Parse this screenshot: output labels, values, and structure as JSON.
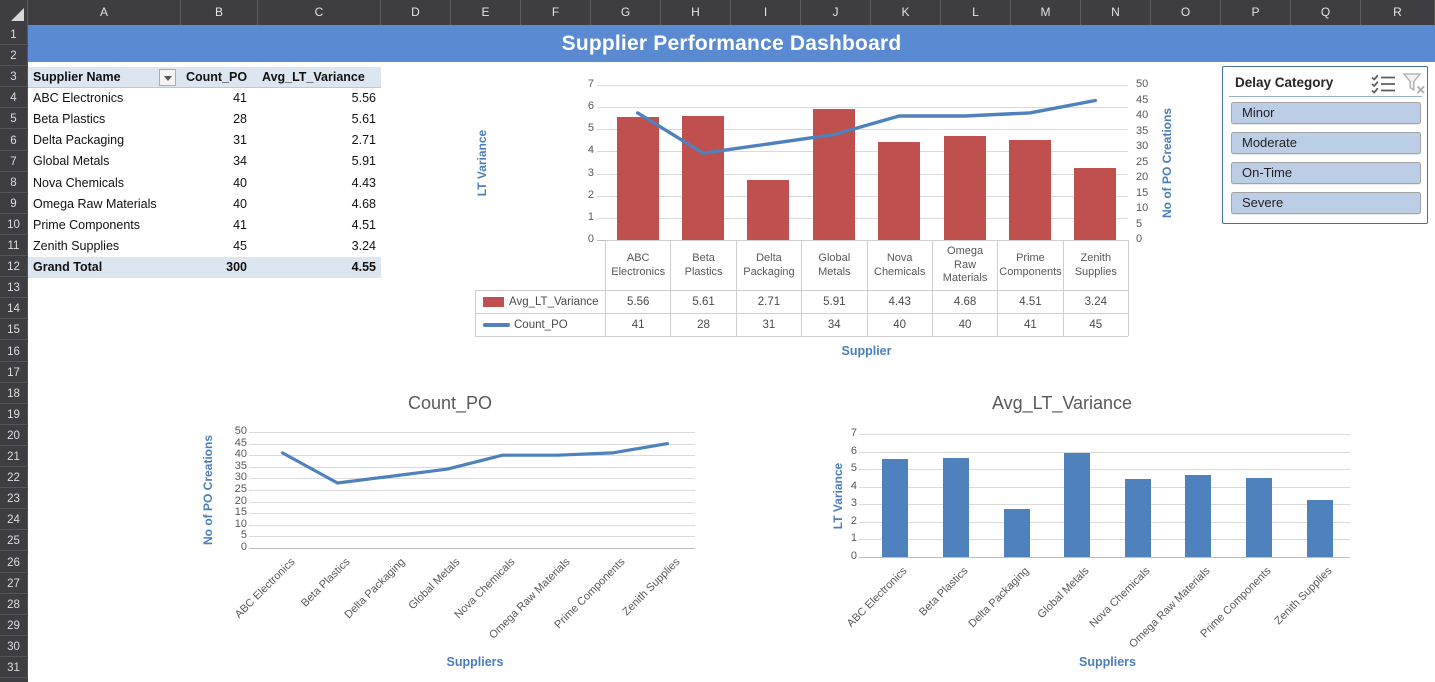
{
  "sheet": {
    "columns": [
      "A",
      "B",
      "C",
      "D",
      "E",
      "F",
      "G",
      "H",
      "I",
      "J",
      "K",
      "L",
      "M",
      "N",
      "O",
      "P",
      "Q",
      "R"
    ],
    "row_first": 1,
    "row_last": 31,
    "select_all_icon": "select-all-triangle"
  },
  "banner": {
    "title": "Supplier Performance Dashboard"
  },
  "colors": {
    "banner_blue": "#5A8AD2",
    "bar_red": "#C0504D",
    "accent_blue": "#4F81BD",
    "axis_title_blue": "#4A7EBB",
    "chart_text_gray": "#595959",
    "pivot_header_fill": "#DCE6F1",
    "slicer_button_fill": "#BCCEE6",
    "gridline": "#DADADA",
    "zero_line": "#BDBDBD",
    "table_border": "#CFCFCF"
  },
  "pivot": {
    "headers": [
      "Supplier Name",
      "Count_PO",
      "Avg_LT_Variance"
    ],
    "filter_icon": "dropdown-arrow",
    "rows": [
      {
        "name": "ABC Electronics",
        "count_po": 41,
        "avg_lt_variance": 5.56
      },
      {
        "name": "Beta Plastics",
        "count_po": 28,
        "avg_lt_variance": 5.61
      },
      {
        "name": "Delta Packaging",
        "count_po": 31,
        "avg_lt_variance": 2.71
      },
      {
        "name": "Global Metals",
        "count_po": 34,
        "avg_lt_variance": 5.91
      },
      {
        "name": "Nova Chemicals",
        "count_po": 40,
        "avg_lt_variance": 4.43
      },
      {
        "name": "Omega Raw Materials",
        "count_po": 40,
        "avg_lt_variance": 4.68
      },
      {
        "name": "Prime Components",
        "count_po": 41,
        "avg_lt_variance": 4.51
      },
      {
        "name": "Zenith Supplies",
        "count_po": 45,
        "avg_lt_variance": 3.24
      }
    ],
    "grand_total": {
      "label": "Grand Total",
      "count_po": 300,
      "avg_lt_variance": 4.55
    }
  },
  "slicer": {
    "title": "Delay Category",
    "icons": [
      "multi-select-icon",
      "clear-filter-icon"
    ],
    "buttons": [
      "Minor",
      "Moderate",
      "On-Time",
      "Severe"
    ]
  },
  "chart_data": [
    {
      "type": "combo",
      "categories": [
        "ABC Electronics",
        "Beta Plastics",
        "Delta Packaging",
        "Global Metals",
        "Nova Chemicals",
        "Omega Raw Materials",
        "Prime Components",
        "Zenith Supplies"
      ],
      "series": [
        {
          "name": "Avg_LT_Variance",
          "chart": "bar",
          "axis": "left",
          "color": "#C0504D",
          "decimals": 2,
          "values": [
            5.56,
            5.61,
            2.71,
            5.91,
            4.43,
            4.68,
            4.51,
            3.24
          ]
        },
        {
          "name": "Count_PO",
          "chart": "line",
          "axis": "right",
          "color": "#4F81BD",
          "decimals": 0,
          "values": [
            41,
            28,
            31,
            34,
            40,
            40,
            41,
            45
          ]
        }
      ],
      "left_axis": {
        "title": "LT Variance",
        "min": 0,
        "max": 7,
        "step": 1
      },
      "right_axis": {
        "title": "No of PO Creations",
        "min": 0,
        "max": 50,
        "step": 5
      },
      "xlabel": "Supplier",
      "data_table": true,
      "grid": true,
      "legend_position": "data-table"
    },
    {
      "type": "line",
      "title": "Count_PO",
      "categories": [
        "ABC Electronics",
        "Beta Plastics",
        "Delta Packaging",
        "Global Metals",
        "Nova Chemicals",
        "Omega Raw Materials",
        "Prime Components",
        "Zenith Supplies"
      ],
      "values": [
        41,
        28,
        31,
        34,
        40,
        40,
        41,
        45
      ],
      "ylabel": "No of PO Creations",
      "xlabel": "Suppliers",
      "ylim": [
        0,
        50
      ],
      "ystep": 5,
      "color": "#4F81BD",
      "grid": true
    },
    {
      "type": "bar",
      "title": "Avg_LT_Variance",
      "categories": [
        "ABC Electronics",
        "Beta Plastics",
        "Delta Packaging",
        "Global Metals",
        "Nova Chemicals",
        "Omega Raw Materials",
        "Prime Components",
        "Zenith Supplies"
      ],
      "values": [
        5.56,
        5.61,
        2.71,
        5.91,
        4.43,
        4.68,
        4.51,
        3.24
      ],
      "ylabel": "LT Variance",
      "xlabel": "Suppliers",
      "ylim": [
        0,
        7
      ],
      "ystep": 1,
      "color": "#4F81BD",
      "grid": true
    }
  ]
}
